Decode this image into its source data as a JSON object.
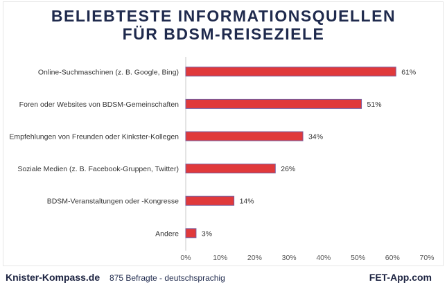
{
  "chart_data": {
    "type": "bar",
    "orientation": "horizontal",
    "title": "BELIEBTESTE INFORMATIONSQUELLEN\nFÜR BDSM-REISEZIELE",
    "title_lines": [
      "BELIEBTESTE INFORMATIONSQUELLEN",
      "FÜR BDSM-REISEZIELE"
    ],
    "categories": [
      "Online-Suchmaschinen (z. B. Google, Bing)",
      "Foren oder Websites von BDSM-Gemeinschaften",
      "Empfehlungen von Freunden oder Kinkster-Kollegen",
      "Soziale Medien (z. B. Facebook-Gruppen, Twitter)",
      "BDSM-Veranstaltungen oder -Kongresse",
      "Andere"
    ],
    "values": [
      61,
      51,
      34,
      26,
      14,
      3
    ],
    "data_labels": [
      "61%",
      "51%",
      "34%",
      "26%",
      "14%",
      "3%"
    ],
    "xlim": [
      0,
      70
    ],
    "x_ticks": [
      "0%",
      "10%",
      "20%",
      "30%",
      "40%",
      "50%",
      "60%",
      "70%"
    ],
    "grid": false,
    "bar_color": "#e0393b",
    "bar_border_color": "#7a5a9a"
  },
  "footer": {
    "left_brand": "Knister-Kompass.de",
    "note": "875 Befragte - deutschsprachig",
    "right_brand": "FET-App.com"
  }
}
